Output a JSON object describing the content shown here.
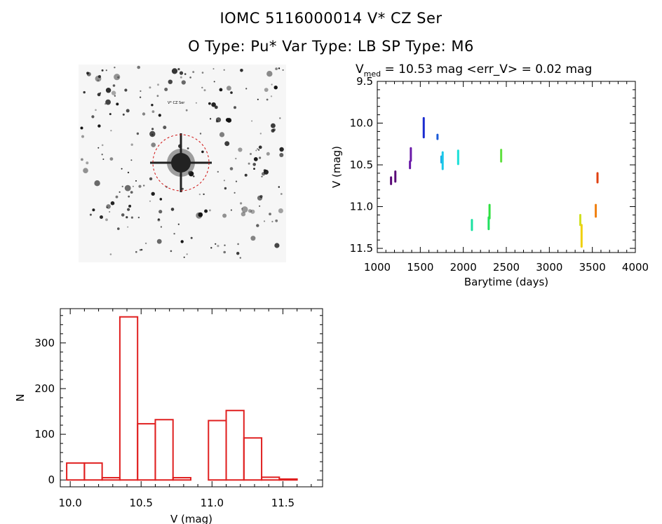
{
  "header": {
    "title_line1": "IOMC 5116000014    V* CZ Ser",
    "title_line2": "O Type: Pu*   Var Type: LB   SP Type: M6"
  },
  "image": {
    "description_icon": "star-field-image"
  },
  "chart_data": [
    {
      "type": "scatter",
      "title_prefix": "V",
      "title_sub": "med",
      "title_rest": " = 10.53 mag <err_V> = 0.02 mag",
      "xlabel": "Barytime (days)",
      "ylabel": "V (mag)",
      "xlim": [
        1000,
        4000
      ],
      "ylim": [
        11.55,
        9.5
      ],
      "xticks": [
        "1000",
        "1500",
        "2000",
        "2500",
        "3000",
        "3500",
        "4000"
      ],
      "xtick_values": [
        1000,
        1500,
        2000,
        2500,
        3000,
        3500,
        4000
      ],
      "yticks": [
        "9.5",
        "10.0",
        "10.5",
        "11.0",
        "11.5"
      ],
      "ytick_values": [
        9.5,
        10.0,
        10.5,
        11.0,
        11.5
      ],
      "series": [
        {
          "name": "s1",
          "color": "#5a0a78",
          "x": 1160,
          "ymin": 10.65,
          "ymax": 10.73
        },
        {
          "name": "s2",
          "color": "#5a0a78",
          "x": 1210,
          "ymin": 10.58,
          "ymax": 10.7
        },
        {
          "name": "s3",
          "color": "#6a1aa8",
          "x": 1380,
          "ymin": 10.46,
          "ymax": 10.54
        },
        {
          "name": "s4",
          "color": "#6a1aa8",
          "x": 1390,
          "ymin": 10.3,
          "ymax": 10.45
        },
        {
          "name": "s5",
          "color": "#1a2ad0",
          "x": 1540,
          "ymin": 9.94,
          "ymax": 10.17
        },
        {
          "name": "s6",
          "color": "#1a5ad8",
          "x": 1700,
          "ymin": 10.14,
          "ymax": 10.19
        },
        {
          "name": "s7",
          "color": "#1aa8e8",
          "x": 1745,
          "ymin": 10.4,
          "ymax": 10.47
        },
        {
          "name": "s8",
          "color": "#1ac8e8",
          "x": 1760,
          "ymin": 10.35,
          "ymax": 10.55
        },
        {
          "name": "s9",
          "color": "#1ae0d8",
          "x": 1940,
          "ymin": 10.33,
          "ymax": 10.49
        },
        {
          "name": "s10",
          "color": "#1ae0a0",
          "x": 2100,
          "ymin": 11.16,
          "ymax": 11.28
        },
        {
          "name": "s11",
          "color": "#20e060",
          "x": 2295,
          "ymin": 11.13,
          "ymax": 11.27
        },
        {
          "name": "s12",
          "color": "#30e040",
          "x": 2305,
          "ymin": 10.98,
          "ymax": 11.14
        },
        {
          "name": "s13",
          "color": "#60e040",
          "x": 2440,
          "ymin": 10.32,
          "ymax": 10.46
        },
        {
          "name": "s14",
          "color": "#d0e020",
          "x": 3360,
          "ymin": 11.1,
          "ymax": 11.22
        },
        {
          "name": "s15",
          "color": "#f0d010",
          "x": 3375,
          "ymin": 11.22,
          "ymax": 11.48
        },
        {
          "name": "s16",
          "color": "#f08010",
          "x": 3540,
          "ymin": 10.98,
          "ymax": 11.12
        },
        {
          "name": "s17",
          "color": "#e04010",
          "x": 3560,
          "ymin": 10.6,
          "ymax": 10.71
        }
      ]
    },
    {
      "type": "bar",
      "xlabel": "V (mag)",
      "ylabel": "N",
      "xlim": [
        9.93,
        11.78
      ],
      "ylim": [
        -15,
        375
      ],
      "xticks": [
        "10.0",
        "10.5",
        "11.0",
        "11.5"
      ],
      "xtick_values": [
        10.0,
        10.5,
        11.0,
        11.5
      ],
      "yticks": [
        "0",
        "100",
        "200",
        "300"
      ],
      "ytick_values": [
        0,
        100,
        200,
        300
      ],
      "bin_width": 0.125,
      "bin_starts": [
        9.975,
        10.1,
        10.225,
        10.35,
        10.475,
        10.6,
        10.725,
        10.85,
        10.975,
        11.1,
        11.225,
        11.35,
        11.475
      ],
      "values": [
        37,
        37,
        5,
        357,
        123,
        132,
        5,
        0,
        130,
        152,
        92,
        6,
        2
      ],
      "color": "#e02020"
    }
  ]
}
